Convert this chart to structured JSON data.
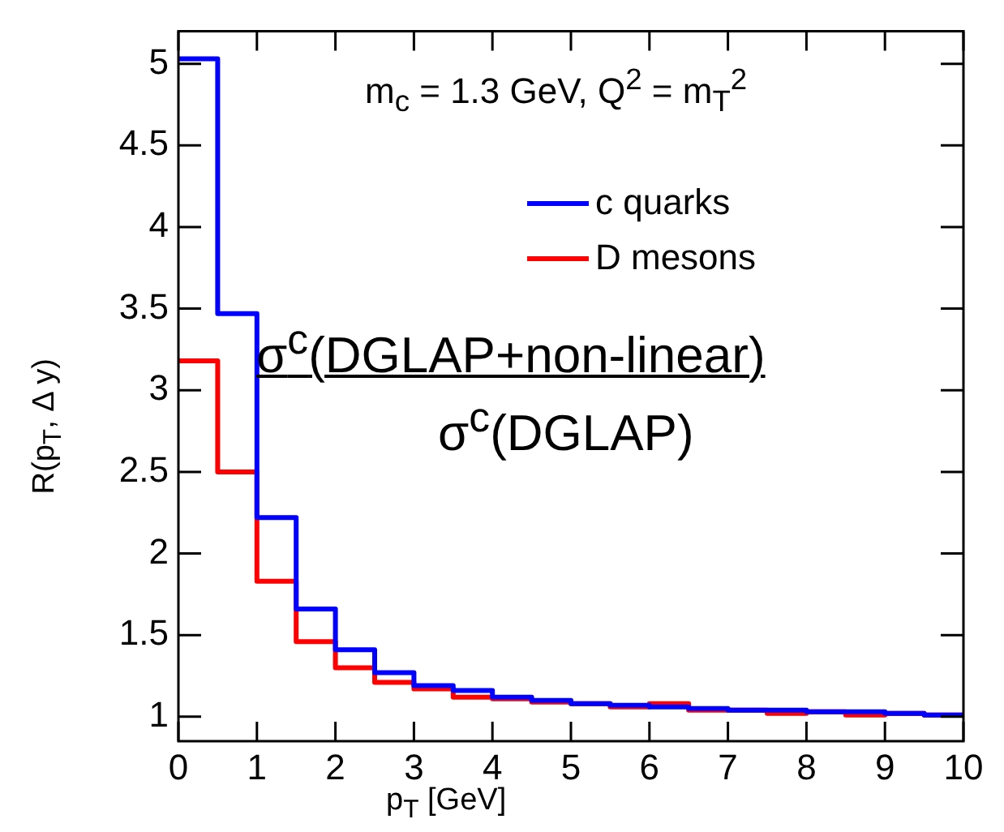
{
  "chart_data": {
    "type": "histogram",
    "xlabel": "p$_{T}$ [GeV]",
    "ylabel": "R(p$_{T}$, Δ y)",
    "annotations": [
      "m$_{c}$ = 1.3 GeV, Q$^{2}$ = m$_{T}$$^{2}$",
      "σ$^{c}$(DGLAP+non-linear)",
      "σ$^{c}$(DGLAP)"
    ],
    "bins": [
      0,
      0.5,
      1,
      1.5,
      2,
      2.5,
      3,
      3.5,
      4,
      4.5,
      5,
      5.5,
      6,
      6.5,
      7,
      7.5,
      8,
      8.5,
      9,
      9.5,
      10
    ],
    "series": [
      {
        "name": "c quarks",
        "color": "#0000ff",
        "values": [
          5.03,
          3.47,
          2.22,
          1.66,
          1.41,
          1.27,
          1.19,
          1.16,
          1.12,
          1.1,
          1.08,
          1.07,
          1.06,
          1.05,
          1.04,
          1.04,
          1.03,
          1.03,
          1.02,
          1.01
        ]
      },
      {
        "name": "D mesons",
        "color": "#ff0000",
        "values": [
          3.18,
          2.5,
          1.83,
          1.46,
          1.3,
          1.21,
          1.17,
          1.12,
          1.11,
          1.09,
          1.08,
          1.06,
          1.08,
          1.04,
          1.04,
          1.02,
          1.03,
          1.01,
          1.02,
          1.01
        ]
      }
    ],
    "xlim": [
      0,
      10
    ],
    "ylim": [
      0.85,
      5.2
    ],
    "xticks": [
      0,
      1,
      2,
      3,
      4,
      5,
      6,
      7,
      8,
      9,
      10
    ],
    "yticks": [
      1,
      1.5,
      2,
      2.5,
      3,
      3.5,
      4,
      4.5,
      5
    ],
    "legend": "top right"
  }
}
